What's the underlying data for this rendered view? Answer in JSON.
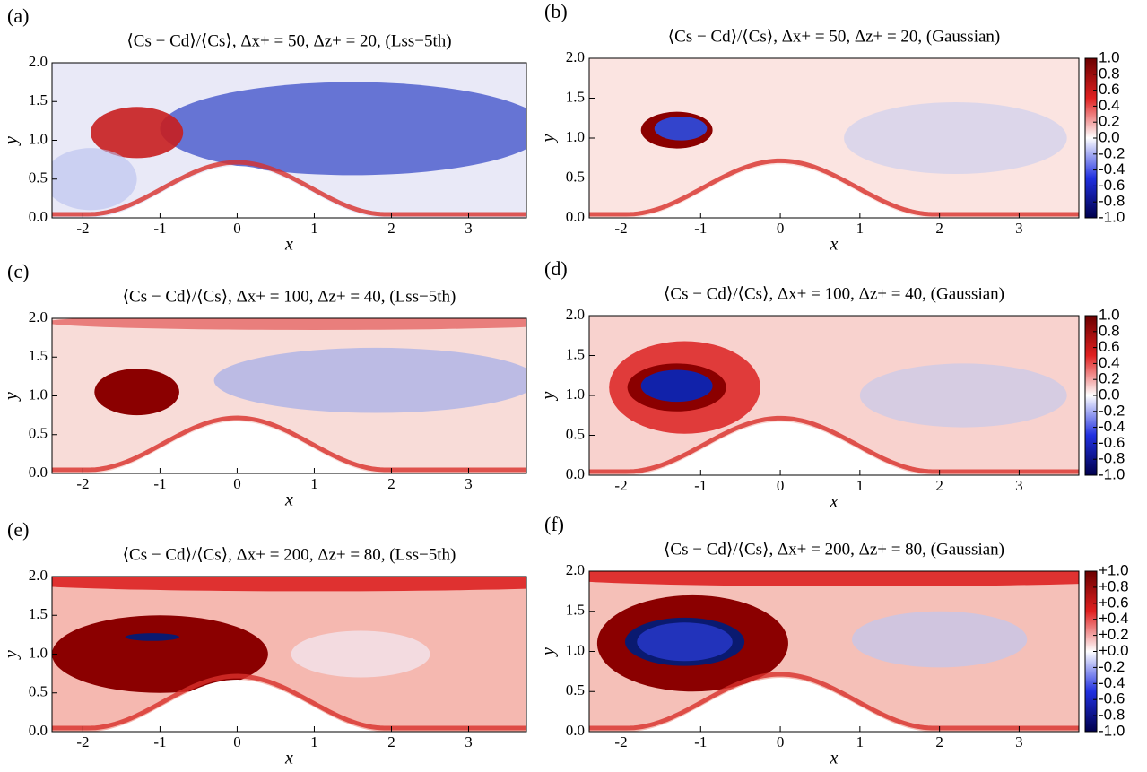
{
  "chart_data": [
    {
      "type": "contour",
      "panel_label": "(a)",
      "title": "⟨Cs − Cd⟩/⟨Cs⟩,  Δx+ = 50,  Δz+ = 20,  (Lss−5th)",
      "xlabel": "x",
      "ylabel": "y",
      "xlim": [
        -2.4,
        3.75
      ],
      "ylim": [
        0,
        2
      ],
      "xticks": [
        -2,
        -1,
        0,
        1,
        2,
        3
      ],
      "yticks": [
        {
          "value": 0,
          "label": "0.0"
        },
        0.5,
        {
          "value": 1,
          "label": "1.0"
        },
        1.5,
        {
          "value": 2,
          "label": "2.0"
        }
      ]
    },
    {
      "type": "contour",
      "panel_label": "(b)",
      "title": "⟨Cs − Cd⟩/⟨Cs⟩,  Δx+ = 50,  Δz+ = 20,  (Gaussian)",
      "xlabel": "x",
      "ylabel": "y",
      "xlim": [
        -2.4,
        3.75
      ],
      "ylim": [
        0,
        2
      ],
      "xticks": [
        -2,
        -1,
        0,
        1,
        2,
        3
      ],
      "yticks": [
        {
          "value": 0,
          "label": "0.0"
        },
        0.5,
        {
          "value": 1,
          "label": "1.0"
        },
        1.5,
        {
          "value": 2,
          "label": "2.0"
        }
      ],
      "colorbar_lim": [
        -1,
        1
      ],
      "colorbar_ticks": [
        {
          "value": 1,
          "label": "1.0"
        },
        0.8,
        0.6,
        0.4,
        0.2,
        {
          "value": 0,
          "label": "0.0"
        },
        -0.2,
        -0.4,
        -0.6,
        -0.8,
        {
          "value": -1,
          "label": "-1.0"
        }
      ]
    },
    {
      "type": "contour",
      "panel_label": "(c)",
      "title": "⟨Cs − Cd⟩/⟨Cs⟩,  Δx+ = 100,  Δz+ = 40,  (Lss−5th)",
      "xlabel": "x",
      "ylabel": "y",
      "xlim": [
        -2.4,
        3.75
      ],
      "ylim": [
        0,
        2
      ],
      "xticks": [
        -2,
        -1,
        0,
        1,
        2,
        3
      ],
      "yticks": [
        {
          "value": 0,
          "label": "0.0"
        },
        0.5,
        {
          "value": 1,
          "label": "1.0"
        },
        1.5,
        {
          "value": 2,
          "label": "2.0"
        }
      ]
    },
    {
      "type": "contour",
      "panel_label": "(d)",
      "title": "⟨Cs − Cd⟩/⟨Cs⟩,  Δx+ = 100,  Δz+ = 40,  (Gaussian)",
      "xlabel": "x",
      "ylabel": "y",
      "xlim": [
        -2.4,
        3.75
      ],
      "ylim": [
        0,
        2
      ],
      "xticks": [
        -2,
        -1,
        0,
        1,
        2,
        3
      ],
      "yticks": [
        {
          "value": 0,
          "label": "0.0"
        },
        0.5,
        {
          "value": 1,
          "label": "1.0"
        },
        1.5,
        {
          "value": 2,
          "label": "2.0"
        }
      ],
      "colorbar_lim": [
        -1,
        1
      ],
      "colorbar_ticks": [
        {
          "value": 1,
          "label": "1.0"
        },
        0.8,
        0.6,
        0.4,
        0.2,
        {
          "value": 0,
          "label": "0.0"
        },
        -0.2,
        -0.4,
        -0.6,
        -0.8,
        {
          "value": -1,
          "label": "-1.0"
        }
      ]
    },
    {
      "type": "contour",
      "panel_label": "(e)",
      "title": "⟨Cs − Cd⟩/⟨Cs⟩,  Δx+ = 200,  Δz+ = 80,  (Lss−5th)",
      "xlabel": "x",
      "ylabel": "y",
      "xlim": [
        -2.4,
        3.75
      ],
      "ylim": [
        0,
        2
      ],
      "xticks": [
        -2,
        -1,
        0,
        1,
        2,
        3
      ],
      "yticks": [
        {
          "value": 0,
          "label": "0.0"
        },
        0.5,
        {
          "value": 1,
          "label": "1.0"
        },
        1.5,
        {
          "value": 2,
          "label": "2.0"
        }
      ]
    },
    {
      "type": "contour",
      "panel_label": "(f)",
      "title": "⟨Cs − Cd⟩/⟨Cs⟩,  Δx+ = 200,  Δz+ = 80,  (Gaussian)",
      "xlabel": "x",
      "ylabel": "y",
      "xlim": [
        -2.4,
        3.75
      ],
      "ylim": [
        0,
        2
      ],
      "xticks": [
        -2,
        -1,
        0,
        1,
        2,
        3
      ],
      "yticks": [
        {
          "value": 0,
          "label": "0.0"
        },
        0.5,
        {
          "value": 1,
          "label": "1.0"
        },
        1.5,
        {
          "value": 2,
          "label": "2.0"
        }
      ],
      "colorbar_lim": [
        -1,
        1
      ],
      "colorbar_ticks": [
        {
          "value": 1,
          "label": "+1.0"
        },
        {
          "value": 0.8,
          "label": "+0.8"
        },
        {
          "value": 0.6,
          "label": "+0.6"
        },
        {
          "value": 0.4,
          "label": "+0.4"
        },
        {
          "value": 0.2,
          "label": "+0.2"
        },
        {
          "value": 0,
          "label": "+0.0"
        },
        -0.2,
        -0.4,
        -0.6,
        -0.8,
        {
          "value": -1,
          "label": "-1.0"
        }
      ]
    }
  ]
}
